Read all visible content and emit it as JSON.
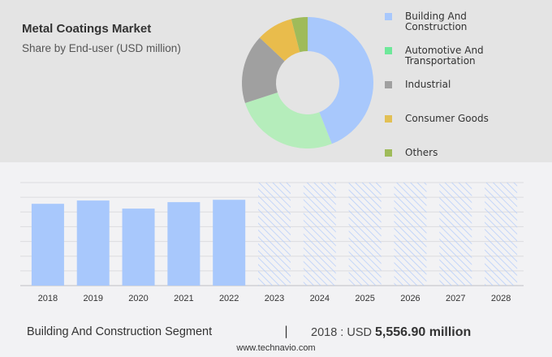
{
  "header": {
    "title": "Metal Coatings Market",
    "subtitle": "Share by End-user (USD million)"
  },
  "chart_data": [
    {
      "type": "pie",
      "donut": true,
      "categories": [
        "Building And Construction",
        "Automotive And Transportation",
        "Industrial",
        "Consumer Goods",
        "Others"
      ],
      "values": [
        44,
        26,
        17,
        9,
        4
      ],
      "colors": [
        "#a8c8fc",
        "#b5edbb",
        "#a0a0a0",
        "#e9bc4c",
        "#9fbb5a"
      ],
      "legend_colors": [
        "#a8c8fc",
        "#6ee89a",
        "#a0a0a0",
        "#e2c055",
        "#9fbb5a"
      ],
      "legend": "right"
    },
    {
      "type": "bar",
      "categories": [
        "2018",
        "2019",
        "2020",
        "2021",
        "2022",
        "2023",
        "2024",
        "2025",
        "2026",
        "2027",
        "2028"
      ],
      "values": [
        5556.9,
        5780,
        5230,
        5670,
        5830,
        null,
        null,
        null,
        null,
        null,
        null
      ],
      "forecast": [
        "2023",
        "2024",
        "2025",
        "2026",
        "2027",
        "2028"
      ],
      "ylim": [
        0,
        7000
      ],
      "grid": true,
      "color": "#a8c8fc"
    }
  ],
  "footer": {
    "segment": "Building And Construction Segment",
    "separator": "|",
    "year_prefix": "2018 : USD",
    "value": "5,556.90 million",
    "site": "www.technavio.com"
  }
}
